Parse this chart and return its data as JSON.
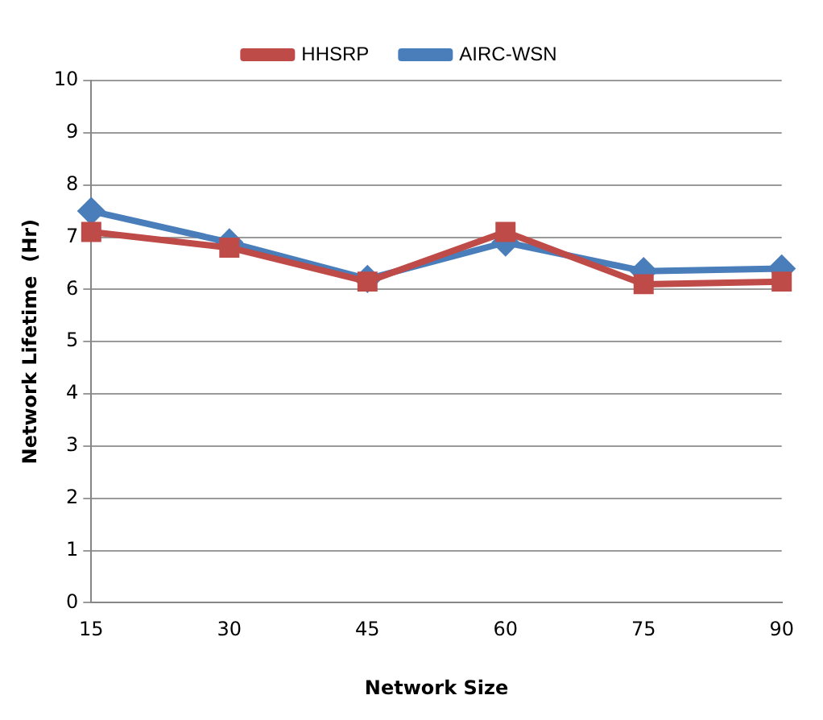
{
  "chart_data": {
    "type": "line",
    "xlabel": "Network Size",
    "ylabel": "Network Lifetime  (Hr)",
    "categories": [
      "15",
      "30",
      "45",
      "60",
      "75",
      "90"
    ],
    "series": [
      {
        "name": "AIRC-WSN",
        "color": "#4a7ebb",
        "marker": "diamond",
        "values": [
          7.5,
          6.9,
          6.2,
          6.9,
          6.35,
          6.4
        ]
      },
      {
        "name": "HHSRP",
        "color": "#be4b48",
        "marker": "square",
        "values": [
          7.1,
          6.8,
          6.15,
          7.1,
          6.1,
          6.15
        ]
      }
    ],
    "ylim": [
      0,
      10
    ],
    "yticks": [
      0,
      1,
      2,
      3,
      4,
      5,
      6,
      7,
      8,
      9,
      10
    ],
    "grid": "y",
    "legend": "top",
    "line_style": "solid"
  }
}
